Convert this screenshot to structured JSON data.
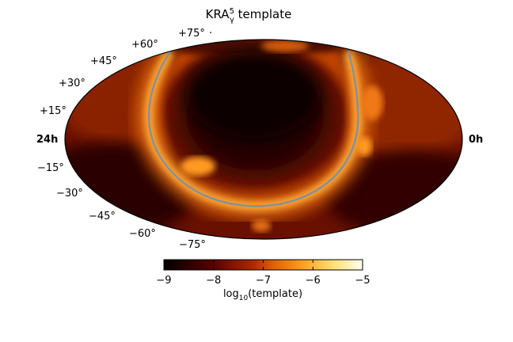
{
  "title": {
    "main": "KRA",
    "sub": "γ",
    "sup": "5",
    "suffix": " template"
  },
  "map": {
    "projection": "mollweide",
    "ra_left": "24h",
    "ra_right": "0h",
    "dec_labels_left": [
      "+75°",
      "+60°",
      "+45°",
      "+30°",
      "+15°",
      "−15°",
      "−30°",
      "−45°",
      "−60°",
      "−75°"
    ],
    "dec_label_top_extra": "·",
    "colormap": "afmhot",
    "overlay_line_color": "#8a8f96",
    "outline_color": "#000000"
  },
  "colorbar": {
    "ticks": [
      "−9",
      "−8",
      "−7",
      "−6",
      "−5"
    ],
    "tick_values": [
      -9,
      -8,
      -7,
      -6,
      -5
    ],
    "range": [
      -9,
      -5
    ],
    "label_prefix": "log",
    "label_sub": "10",
    "label_suffix": "(template)"
  }
}
